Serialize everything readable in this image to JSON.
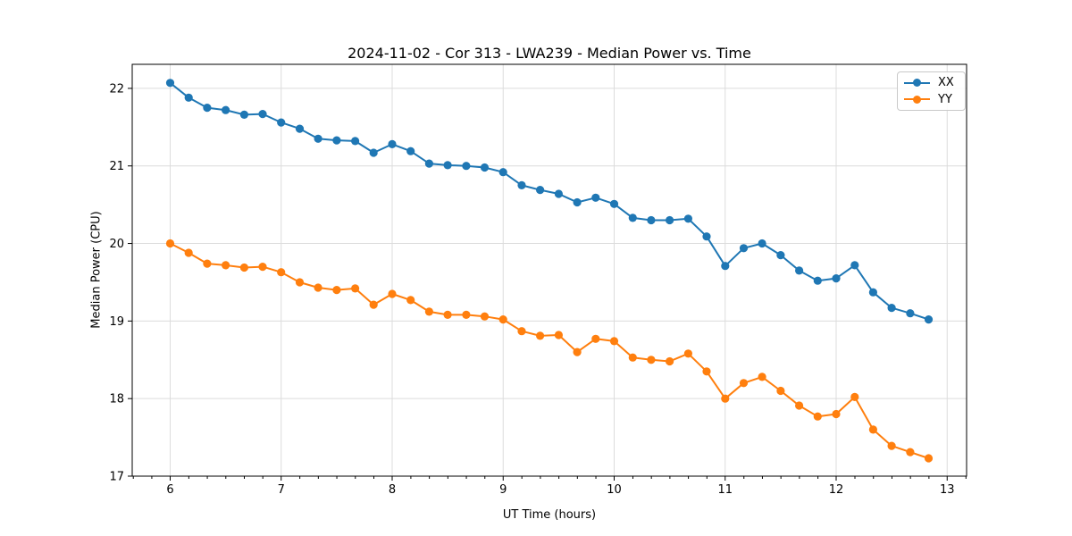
{
  "chart_data": {
    "type": "line",
    "title": "2024-11-02 - Cor 313 - LWA239 - Median Power vs. Time",
    "xlabel": "UT Time (hours)",
    "ylabel": "Median Power (CPU)",
    "xlim": [
      5.658,
      13.175
    ],
    "ylim": [
      17,
      22.31
    ],
    "xticks": [
      6,
      7,
      8,
      9,
      10,
      11,
      12,
      13
    ],
    "yticks": [
      17,
      18,
      19,
      20,
      21,
      22
    ],
    "x_minor_tick_step": 0.1667,
    "grid": true,
    "legend_position": "upper right",
    "background": "#ffffff",
    "grid_color": "#dcdcdc",
    "x": [
      6.0,
      6.167,
      6.333,
      6.5,
      6.667,
      6.833,
      7.0,
      7.167,
      7.333,
      7.5,
      7.667,
      7.833,
      8.0,
      8.167,
      8.333,
      8.5,
      8.667,
      8.833,
      9.0,
      9.167,
      9.333,
      9.5,
      9.667,
      9.833,
      10.0,
      10.167,
      10.333,
      10.5,
      10.667,
      10.833,
      11.0,
      11.167,
      11.333,
      11.5,
      11.667,
      11.833,
      12.0,
      12.167,
      12.333,
      12.5,
      12.667,
      12.833
    ],
    "series": [
      {
        "name": "XX",
        "color": "#1f77b4",
        "values": [
          22.07,
          21.88,
          21.75,
          21.72,
          21.66,
          21.67,
          21.56,
          21.48,
          21.35,
          21.33,
          21.32,
          21.17,
          21.28,
          21.19,
          21.03,
          21.01,
          21.0,
          20.98,
          20.92,
          20.75,
          20.69,
          20.64,
          20.53,
          20.59,
          20.51,
          20.33,
          20.3,
          20.3,
          20.32,
          20.09,
          19.71,
          19.94,
          20.0,
          19.85,
          19.65,
          19.52,
          19.55,
          19.72,
          19.37,
          19.17,
          19.1,
          19.02
        ]
      },
      {
        "name": "YY",
        "color": "#ff7f0e",
        "values": [
          20.0,
          19.88,
          19.74,
          19.72,
          19.69,
          19.7,
          19.63,
          19.5,
          19.43,
          19.4,
          19.42,
          19.21,
          19.35,
          19.27,
          19.12,
          19.08,
          19.08,
          19.06,
          19.02,
          18.87,
          18.81,
          18.82,
          18.6,
          18.77,
          18.74,
          18.53,
          18.5,
          18.48,
          18.58,
          18.35,
          18.0,
          18.2,
          18.28,
          18.1,
          17.91,
          17.77,
          17.8,
          18.02,
          17.6,
          17.39,
          17.31,
          17.23
        ]
      }
    ]
  }
}
